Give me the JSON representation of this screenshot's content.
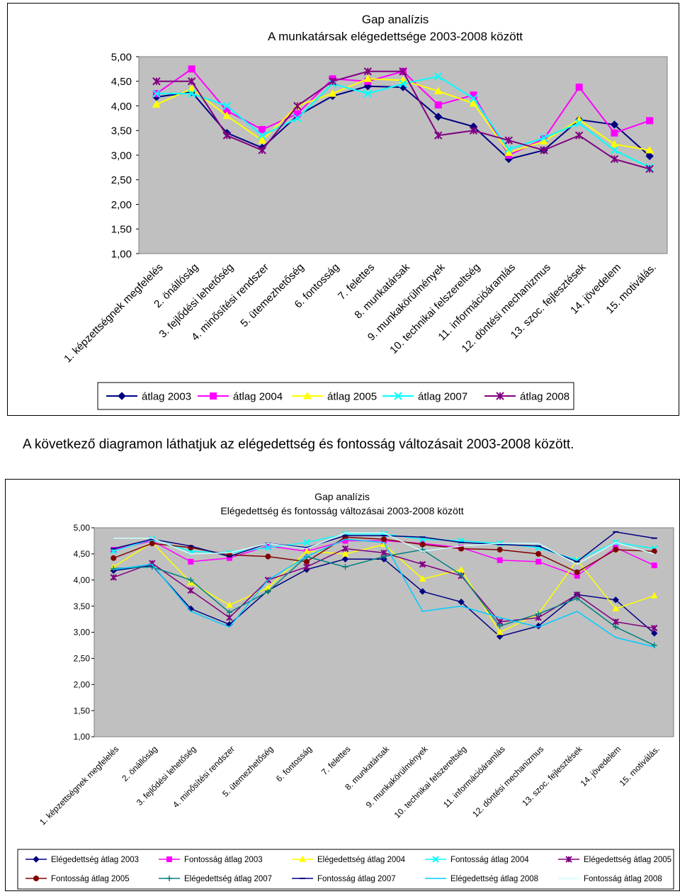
{
  "page": {
    "between_text": "A következő diagramon láthatjuk az elégedettség és fontosság változásait 2003-2008 között."
  },
  "chart_data": [
    {
      "type": "line",
      "title": "Gap analízis",
      "subtitle": "A munkatársak elégedettsége 2003-2008 között",
      "ylim": [
        1,
        5
      ],
      "yticks": [
        "5,00",
        "4,50",
        "4,00",
        "3,50",
        "3,00",
        "2,50",
        "2,00",
        "1,50",
        "1,00"
      ],
      "plot_background": "#c0c0c0",
      "grid": false,
      "legend_position": "bottom",
      "categories": [
        "1. képzettségnek megfelelés",
        "2. önállóság",
        "3. fejlődési lehetőség",
        "4. minősítési rendszer",
        "5. ütemezhetőség",
        "6. fontosság",
        "7. felettes",
        "8. munkatársak",
        "9. munkakörülmények",
        "10. technikai felszereltség",
        "11. információáramlás",
        "12. döntési mechanizmus",
        "13. szoc. fejlesztések",
        "14. jövedelem",
        "15. motiválás."
      ],
      "series": [
        {
          "name": "átlag 2003",
          "color": "#000080",
          "marker": "diamond",
          "values": [
            4.18,
            4.28,
            3.45,
            3.15,
            3.8,
            4.2,
            4.4,
            4.38,
            3.78,
            3.58,
            2.92,
            3.1,
            3.72,
            3.62,
            2.98
          ]
        },
        {
          "name": "átlag 2004",
          "color": "#ff00ff",
          "marker": "square",
          "values": [
            4.25,
            4.75,
            3.9,
            3.52,
            3.84,
            4.55,
            4.5,
            4.7,
            4.02,
            4.22,
            3.0,
            3.33,
            4.38,
            3.45,
            3.7
          ]
        },
        {
          "name": "átlag 2005",
          "color": "#ffff00",
          "marker": "triangle",
          "values": [
            4.03,
            4.35,
            3.8,
            3.3,
            4.0,
            4.25,
            4.55,
            4.52,
            4.3,
            4.05,
            3.05,
            3.28,
            3.72,
            3.22,
            3.1
          ]
        },
        {
          "name": "átlag 2007",
          "color": "#00ffff",
          "marker": "x",
          "values": [
            4.25,
            4.25,
            4.0,
            3.4,
            3.75,
            4.45,
            4.25,
            4.45,
            4.6,
            4.15,
            3.12,
            3.35,
            3.65,
            3.1,
            2.75
          ]
        },
        {
          "name": "átlag 2008",
          "color": "#800080",
          "marker": "star",
          "values": [
            4.5,
            4.5,
            3.4,
            3.1,
            4.0,
            4.5,
            4.7,
            4.7,
            3.4,
            3.5,
            3.3,
            3.1,
            3.4,
            2.92,
            2.72
          ]
        }
      ]
    },
    {
      "type": "line",
      "title": "Gap analízis",
      "subtitle": "Elégedettség és fontosság változásai 2003-2008 között",
      "ylim": [
        1,
        5
      ],
      "yticks": [
        "5,00",
        "4,50",
        "4,00",
        "3,50",
        "3,00",
        "2,50",
        "2,00",
        "1,50",
        "1,00"
      ],
      "plot_background": "#c0c0c0",
      "grid": false,
      "legend_position": "bottom",
      "categories": [
        "1. képzettségnek megfelelés",
        "2. önállóság",
        "3. fejlődési lehetőség",
        "4. minősítési rendszer",
        "5. ütemezhetőség",
        "6. fontosság",
        "7. felettes",
        "8. munkatársak",
        "9. munkakörülmények",
        "10. technikai felszereltség",
        "11. információáramlás",
        "12. döntési mechanizmus",
        "13. szoc. fejlesztések",
        "14. jövedelem",
        "15. motiválás."
      ],
      "series": [
        {
          "name": "Elégedettség átlag 2003",
          "color": "#000080",
          "marker": "diamond",
          "values": [
            4.18,
            4.28,
            3.45,
            3.15,
            3.8,
            4.2,
            4.4,
            4.4,
            3.78,
            3.58,
            2.92,
            3.12,
            3.72,
            3.62,
            2.98
          ]
        },
        {
          "name": "Fontosság átlag 2003",
          "color": "#ff00ff",
          "marker": "square",
          "values": [
            4.58,
            4.75,
            4.35,
            4.42,
            4.65,
            4.55,
            4.75,
            4.75,
            4.7,
            4.62,
            4.38,
            4.35,
            4.08,
            4.62,
            4.28
          ]
        },
        {
          "name": "Elégedettség átlag 2004",
          "color": "#ffff00",
          "marker": "triangle",
          "values": [
            4.25,
            4.72,
            3.95,
            3.52,
            3.85,
            4.55,
            4.5,
            4.68,
            4.02,
            4.2,
            3.0,
            3.35,
            4.38,
            3.45,
            3.7
          ]
        },
        {
          "name": "Fontosság átlag 2004",
          "color": "#00ffff",
          "marker": "x",
          "values": [
            4.55,
            4.78,
            4.55,
            4.52,
            4.62,
            4.72,
            4.88,
            4.88,
            4.78,
            4.75,
            4.7,
            4.62,
            4.38,
            4.72,
            4.6
          ]
        },
        {
          "name": "Elégedettség átlag 2005",
          "color": "#800080",
          "marker": "star",
          "values": [
            4.05,
            4.32,
            3.8,
            3.28,
            4.0,
            4.25,
            4.6,
            4.52,
            4.3,
            4.08,
            3.2,
            3.28,
            3.72,
            3.2,
            3.08
          ]
        },
        {
          "name": "Fontosság átlag 2005",
          "color": "#800000",
          "marker": "circle",
          "values": [
            4.42,
            4.7,
            4.62,
            4.48,
            4.45,
            4.35,
            4.82,
            4.78,
            4.68,
            4.6,
            4.58,
            4.5,
            4.15,
            4.58,
            4.55
          ]
        },
        {
          "name": "Elégedettség átlag 2007",
          "color": "#008080",
          "marker": "plus",
          "values": [
            4.22,
            4.25,
            4.0,
            3.38,
            3.78,
            4.45,
            4.25,
            4.45,
            4.58,
            4.1,
            3.12,
            3.35,
            3.65,
            3.1,
            2.75
          ]
        },
        {
          "name": "Fontosság átlag 2007",
          "color": "#000080",
          "marker": "dash",
          "values": [
            4.6,
            4.78,
            4.65,
            4.45,
            4.7,
            4.62,
            4.85,
            4.85,
            4.82,
            4.72,
            4.68,
            4.65,
            4.35,
            4.92,
            4.8
          ]
        },
        {
          "name": "Elégedettség átlag 2008",
          "color": "#00ccff",
          "marker": "none",
          "values": [
            4.2,
            4.3,
            3.4,
            3.1,
            4.0,
            4.45,
            4.78,
            4.72,
            3.4,
            3.5,
            3.28,
            3.1,
            3.4,
            2.9,
            2.72
          ]
        },
        {
          "name": "Fontosság átlag 2008",
          "color": "#ccffff",
          "marker": "none",
          "values": [
            4.8,
            4.8,
            4.5,
            4.52,
            4.7,
            4.6,
            4.9,
            4.9,
            4.55,
            4.65,
            4.7,
            4.7,
            4.3,
            4.72,
            4.5
          ]
        }
      ]
    }
  ]
}
